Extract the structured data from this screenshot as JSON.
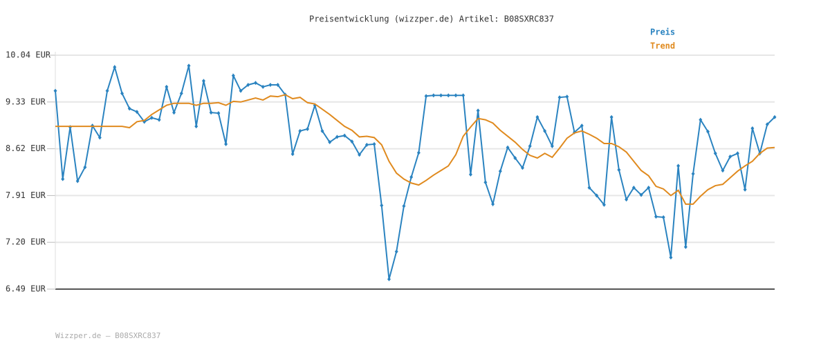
{
  "chart_data": {
    "type": "line",
    "title": "Preisentwicklung (wizzper.de) Artikel: B08SXRC837",
    "footer": "Wizzper.de – B08SXRC837",
    "ylim": [
      6.49,
      10.04
    ],
    "yticks": [
      {
        "value": 6.49,
        "label": "6.49 EUR"
      },
      {
        "value": 7.2,
        "label": "7.20 EUR"
      },
      {
        "value": 7.91,
        "label": "7.91 EUR"
      },
      {
        "value": 8.62,
        "label": "8.62 EUR"
      },
      {
        "value": 9.33,
        "label": "9.33 EUR"
      },
      {
        "value": 10.04,
        "label": "10.04 EUR"
      }
    ],
    "grid": true,
    "legend": "top-right",
    "series": [
      {
        "name": "Preis",
        "color": "#2a83c0",
        "markers": true,
        "values": [
          9.5,
          8.16,
          8.95,
          8.13,
          8.34,
          8.97,
          8.79,
          9.5,
          9.86,
          9.46,
          9.23,
          9.18,
          9.03,
          9.09,
          9.06,
          9.56,
          9.17,
          9.46,
          9.88,
          8.96,
          9.65,
          9.17,
          9.16,
          8.69,
          9.73,
          9.5,
          9.59,
          9.62,
          9.56,
          9.59,
          9.59,
          9.44,
          8.54,
          8.89,
          8.92,
          9.28,
          8.89,
          8.72,
          8.8,
          8.82,
          8.73,
          8.53,
          8.68,
          8.69,
          7.76,
          6.64,
          7.06,
          7.75,
          8.19,
          8.56,
          9.42,
          9.43,
          9.43,
          9.43,
          9.43,
          9.43,
          8.23,
          9.2,
          8.11,
          7.78,
          8.28,
          8.64,
          8.48,
          8.33,
          8.66,
          9.1,
          8.89,
          8.66,
          9.4,
          9.41,
          8.87,
          8.97,
          8.03,
          7.91,
          7.77,
          9.1,
          8.3,
          7.85,
          8.03,
          7.92,
          8.03,
          7.59,
          7.58,
          6.97,
          8.36,
          7.13,
          8.24,
          9.06,
          8.88,
          8.55,
          8.29,
          8.5,
          8.55,
          8.0,
          8.93,
          8.55,
          8.99,
          9.1
        ]
      },
      {
        "name": "Trend",
        "color": "#e08a1e",
        "markers": false,
        "values": [
          8.96,
          8.96,
          8.96,
          8.96,
          8.96,
          8.96,
          8.96,
          8.96,
          8.96,
          8.96,
          8.94,
          9.03,
          9.05,
          9.14,
          9.21,
          9.28,
          9.31,
          9.31,
          9.31,
          9.28,
          9.31,
          9.31,
          9.32,
          9.28,
          9.34,
          9.33,
          9.36,
          9.39,
          9.36,
          9.42,
          9.41,
          9.44,
          9.38,
          9.4,
          9.32,
          9.3,
          9.22,
          9.14,
          9.05,
          8.96,
          8.9,
          8.8,
          8.81,
          8.79,
          8.68,
          8.43,
          8.25,
          8.16,
          8.1,
          8.07,
          8.14,
          8.22,
          8.29,
          8.36,
          8.53,
          8.81,
          8.95,
          9.08,
          9.06,
          9.01,
          8.9,
          8.81,
          8.72,
          8.61,
          8.52,
          8.48,
          8.55,
          8.49,
          8.63,
          8.78,
          8.86,
          8.89,
          8.84,
          8.78,
          8.7,
          8.7,
          8.65,
          8.57,
          8.43,
          8.29,
          8.21,
          8.05,
          8.01,
          7.91,
          7.99,
          7.78,
          7.78,
          7.9,
          8.0,
          8.06,
          8.08,
          8.18,
          8.28,
          8.36,
          8.43,
          8.55,
          8.63,
          8.64
        ]
      }
    ]
  }
}
